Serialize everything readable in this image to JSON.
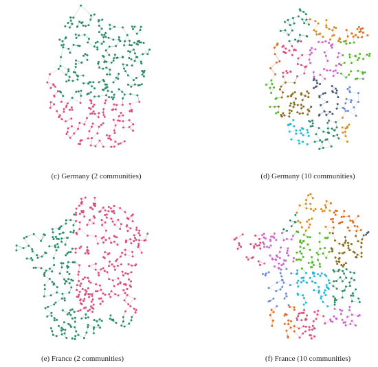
{
  "panels": [
    {
      "caption": "(c) Germany (2 communities)"
    },
    {
      "caption": "(d) Germany (10 communities)"
    },
    {
      "caption": "(e) France (2 communities)"
    },
    {
      "caption": "(f) France (10 communities)"
    }
  ]
}
